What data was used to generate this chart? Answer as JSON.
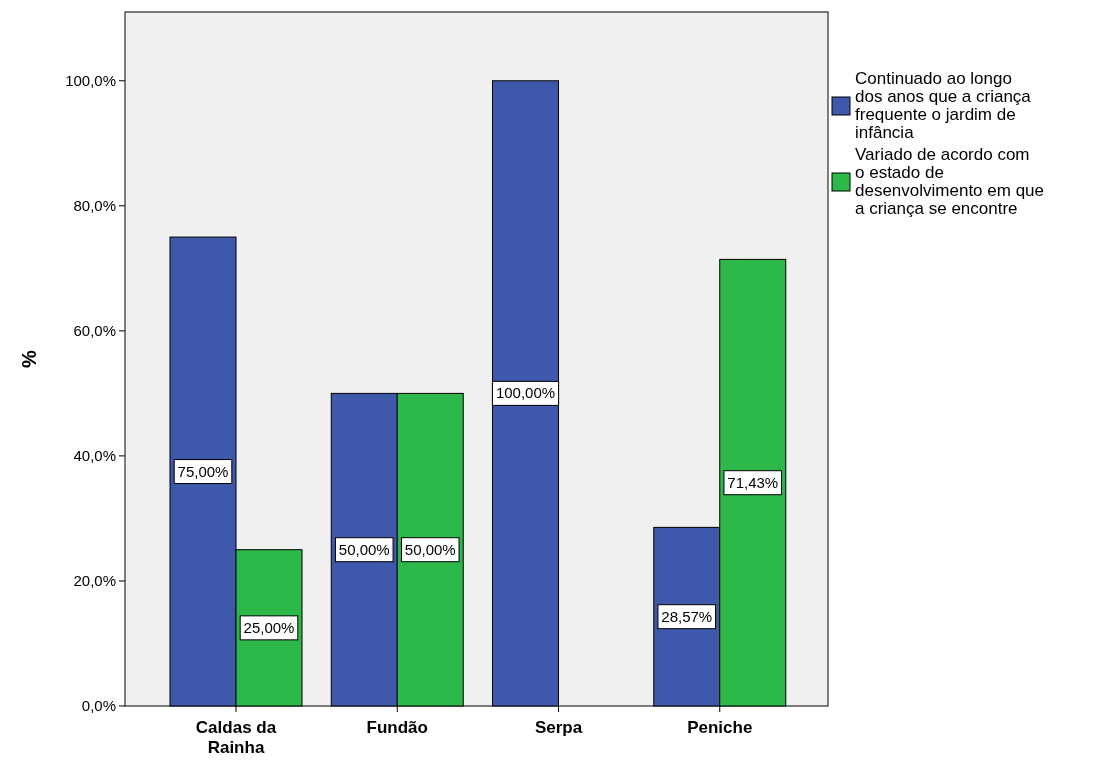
{
  "chart_data": {
    "type": "bar",
    "ylabel": "%",
    "categories": [
      "Caldas da Rainha",
      "Fundão",
      "Serpa",
      "Peniche"
    ],
    "series": [
      {
        "name": "Continuado ao longo dos anos que a criança frequente o jardim de infância",
        "color": "#3e58ac",
        "values": [
          75,
          50,
          100,
          28.57
        ],
        "value_labels": [
          "75,00%",
          "50,00%",
          "100,00%",
          "28,57%"
        ]
      },
      {
        "name": "Variado de acordo com o estado de desenvolvimento em que a criança se encontre",
        "color": "#2db84a",
        "values": [
          25,
          50,
          null,
          71.43
        ],
        "value_labels": [
          "25,00%",
          "50,00%",
          null,
          "71,43%"
        ]
      }
    ],
    "ylim": [
      0,
      111
    ],
    "yticks": [
      {
        "value": 0,
        "label": "0,0%"
      },
      {
        "value": 20,
        "label": "20,0%"
      },
      {
        "value": 40,
        "label": "40,0%"
      },
      {
        "value": 60,
        "label": "60,0%"
      },
      {
        "value": 80,
        "label": "80,0%"
      },
      {
        "value": 100,
        "label": "100,0%"
      }
    ],
    "grid": false,
    "legend": "right"
  }
}
